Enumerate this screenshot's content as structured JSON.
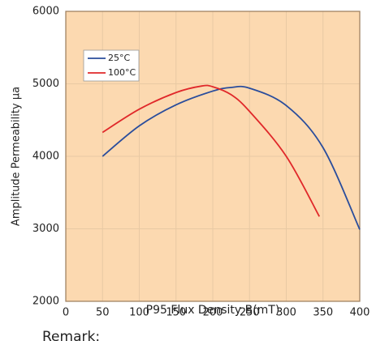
{
  "chart_data": {
    "type": "line",
    "y_label": "Amplitude Permeability μa",
    "x_label": "P95 Flux Density B(mT)",
    "annotation": "Remark:",
    "xlim": [
      0,
      400
    ],
    "xticks": [
      0,
      50,
      100,
      150,
      200,
      250,
      300,
      350,
      400
    ],
    "ylim": [
      2000,
      6000
    ],
    "yticks": [
      2000,
      3000,
      4000,
      5000,
      6000
    ],
    "grid": true,
    "legend": "upper left",
    "background": "#fcd9b0",
    "series": [
      {
        "name": "25°C",
        "color": "#2a4d9c",
        "x": [
          50,
          100,
          150,
          200,
          225,
          250,
          300,
          350,
          400
        ],
        "values": [
          4000,
          4420,
          4710,
          4900,
          4950,
          4940,
          4700,
          4120,
          2990
        ]
      },
      {
        "name": "100°C",
        "color": "#e0282a",
        "x": [
          50,
          100,
          150,
          185,
          200,
          225,
          250,
          300,
          345
        ],
        "values": [
          4330,
          4650,
          4880,
          4970,
          4960,
          4850,
          4620,
          4000,
          3170
        ]
      }
    ]
  }
}
